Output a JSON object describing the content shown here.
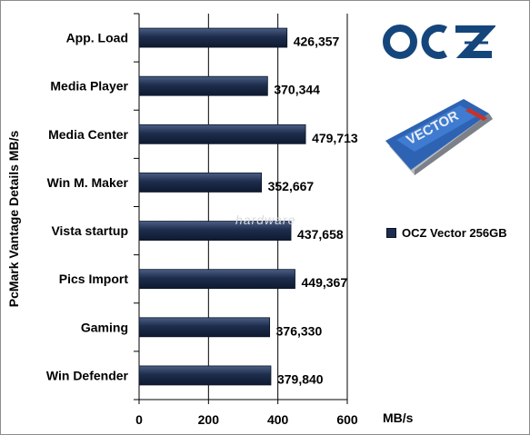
{
  "chart_data": {
    "type": "bar",
    "orientation": "horizontal",
    "categories": [
      "App. Load",
      "Media Player",
      "Media Center",
      "Win M. Maker",
      "Vista startup",
      "Pics Import",
      "Gaming",
      "Win Defender"
    ],
    "series": [
      {
        "name": "OCZ Vector 256GB",
        "values": [
          426.357,
          370.344,
          479.713,
          352.667,
          437.658,
          449.367,
          376.33,
          379.84
        ],
        "data_labels": [
          "426,357",
          "370,344",
          "479,713",
          "352,667",
          "437,658",
          "449,367",
          "376,330",
          "379,840"
        ]
      }
    ],
    "ylabel": "PcMark Vantage Details MB/s",
    "xlabel": "MB/s",
    "xlim": [
      0,
      600
    ],
    "xticks": [
      "0",
      "200",
      "400",
      "600"
    ],
    "grid": true,
    "legend": "right",
    "colors": {
      "bar": "#1e2d4d",
      "grid": "#000000",
      "background": "#ffffff"
    }
  },
  "brand": {
    "logo_text": "OCZ",
    "product_text": "VECTOR",
    "logo_color": "#14467c"
  },
  "watermark": "hardware"
}
